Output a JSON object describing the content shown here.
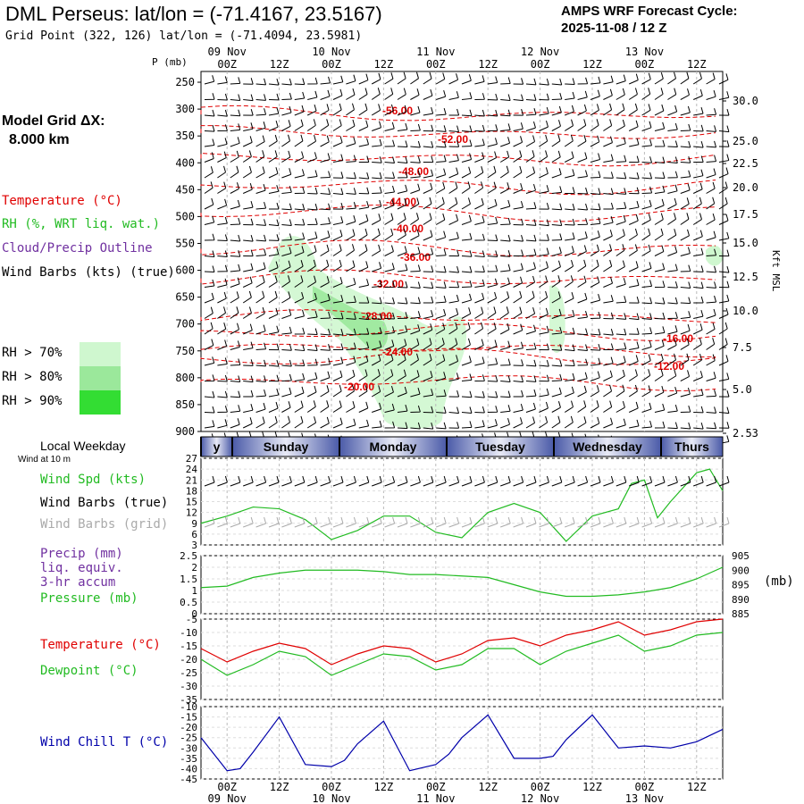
{
  "header": {
    "title": "DML Perseus:  lat/lon = (-71.4167, 23.5167)",
    "grid_point": "Grid Point (322, 126) lat/lon = (-71.4094, 23.5981)",
    "cycle_line1": "AMPS WRF Forecast Cycle:",
    "cycle_line2": "2025-11-08 / 12  Z",
    "model_grid_label": "Model Grid ΔX:",
    "model_grid_value": "8.000 km",
    "pressure_axis_label": "P (mb)",
    "kft_label": "Kft MSL"
  },
  "colors": {
    "temperature": "#e00000",
    "rh": "#22bb22",
    "cloud": "#7030a0",
    "wind": "#000000",
    "wind_grid": "#aaaaaa",
    "wind_chill": "#0000aa",
    "rh70": "#cff7cf",
    "rh80": "#9be89b",
    "rh90": "#33dd33",
    "weekday_band": "#4a5aa8"
  },
  "legend": {
    "temperature": "Temperature (°C)",
    "rh": "RH (%, WRT liq. wat.)",
    "cloud": "Cloud/Precip Outline",
    "wind": "Wind Barbs (kts) (true)",
    "rh70": "RH > 70%",
    "rh80": "RH > 80%",
    "rh90": "RH > 90%"
  },
  "panel_labels": {
    "local_weekday": "Local Weekday",
    "wind_at_10m": "Wind at 10 m",
    "wind_spd": "Wind Spd (kts)",
    "wind_barbs_true": "Wind Barbs (true)",
    "wind_barbs_grid": "Wind Barbs (grid)",
    "precip": "Precip (mm)",
    "liq_equiv": "liq. equiv.",
    "accum": "3-hr accum",
    "pressure": "Pressure (mb)",
    "pressure_unit": "(mb)",
    "temperature": "Temperature (°C)",
    "dewpoint": "Dewpoint (°C)",
    "wind_chill": "Wind Chill T (°C)"
  },
  "time_axis": {
    "top_dates": [
      "09 Nov",
      "10 Nov",
      "11 Nov",
      "12 Nov",
      "13 Nov"
    ],
    "hour_labels": [
      "00Z",
      "12Z",
      "00Z",
      "12Z",
      "00Z",
      "12Z",
      "00Z",
      "12Z",
      "00Z",
      "12Z"
    ],
    "bottom_dates": [
      "09 Nov",
      "10 Nov",
      "11 Nov",
      "12 Nov",
      "13 Nov"
    ],
    "weekdays": [
      "y",
      "Sunday",
      "Monday",
      "Tuesday",
      "Wednesday",
      "Thurs"
    ]
  },
  "chart_data": [
    {
      "type": "contour",
      "name": "cross-section",
      "x_hours": [
        0,
        120
      ],
      "ylabel": "P (mb)",
      "pressure_ticks": [
        250,
        300,
        350,
        400,
        450,
        500,
        550,
        600,
        650,
        700,
        750,
        800,
        850,
        900
      ],
      "height_ticks_kft": [
        "30.0",
        "25.0",
        "22.5",
        "20.0",
        "17.5",
        "15.0",
        "12.5",
        "10.0",
        "7.5",
        "5.0",
        "2.53"
      ],
      "temperature_contours": [
        {
          "label": "-56.00",
          "p": 310
        },
        {
          "label": "-52.00",
          "p": 345
        },
        {
          "label": "-48.00",
          "p": 392
        },
        {
          "label": "-44.00",
          "p": 443
        },
        {
          "label": "-40.00",
          "p": 493
        },
        {
          "label": "-36.00",
          "p": 560
        },
        {
          "label": "-32.00",
          "p": 615
        },
        {
          "label": "-28.00",
          "p": 687
        },
        {
          "label": "-24.00",
          "p": 747
        },
        {
          "label": "-20.00",
          "p": 808
        },
        {
          "label": "-16.00",
          "p": 715
        },
        {
          "label": "-12.00",
          "p": 762
        }
      ]
    },
    {
      "type": "line",
      "name": "wind-speed-10m",
      "ylabel": "Wind Spd (kts)",
      "ylim": [
        3,
        27
      ],
      "yticks": [
        3,
        6,
        9,
        12,
        15,
        18,
        21,
        24,
        27
      ],
      "x_hours": [
        0,
        6,
        12,
        18,
        24,
        30,
        36,
        42,
        48,
        54,
        60,
        66,
        72,
        78,
        84,
        90,
        96,
        99,
        102,
        105,
        108,
        114,
        117,
        120
      ],
      "values": [
        9,
        11,
        13.5,
        13,
        10,
        4.5,
        7,
        11,
        11,
        6.5,
        5,
        12,
        14.5,
        12,
        4,
        11,
        13,
        20,
        21,
        10.5,
        15,
        23,
        24,
        18
      ]
    },
    {
      "type": "line",
      "name": "pressure",
      "ylabel": "Pressure (mb)",
      "ylim": [
        885,
        905
      ],
      "yticks": [
        885,
        890,
        895,
        900,
        905
      ],
      "x_hours": [
        0,
        6,
        12,
        18,
        24,
        30,
        36,
        42,
        48,
        54,
        60,
        66,
        72,
        78,
        84,
        90,
        96,
        102,
        108,
        114,
        120
      ],
      "values": [
        894,
        894.5,
        897.5,
        899,
        900,
        900,
        900,
        899.5,
        898.5,
        898.5,
        898,
        897.5,
        895,
        892.5,
        891,
        891,
        891.5,
        892.5,
        894,
        897,
        901
      ]
    },
    {
      "type": "line",
      "name": "precip",
      "ylabel": "Precip (mm)",
      "ylim": [
        0.0,
        2.5
      ],
      "yticks": [
        0.0,
        0.5,
        1.0,
        1.5,
        2.0,
        2.5
      ],
      "values": []
    },
    {
      "type": "line",
      "name": "temperature-dewpoint",
      "ylim": [
        -35,
        -5
      ],
      "yticks": [
        -5,
        -10,
        -15,
        -20,
        -25,
        -30,
        -35
      ],
      "x_hours": [
        0,
        6,
        12,
        18,
        24,
        30,
        36,
        42,
        48,
        54,
        60,
        66,
        72,
        78,
        84,
        90,
        96,
        102,
        108,
        114,
        120
      ],
      "series": [
        {
          "name": "Temperature (°C)",
          "values": [
            -16,
            -21,
            -17,
            -14,
            -16,
            -22,
            -18,
            -15,
            -16,
            -21,
            -18,
            -13,
            -12,
            -15,
            -11,
            -9,
            -6,
            -11,
            -9,
            -6,
            -5
          ]
        },
        {
          "name": "Dewpoint (°C)",
          "values": [
            -20,
            -26,
            -22,
            -17,
            -19,
            -26,
            -22,
            -18,
            -19,
            -24,
            -22,
            -16,
            -16,
            -22,
            -17,
            -14,
            -11,
            -17,
            -15,
            -11,
            -10
          ]
        }
      ]
    },
    {
      "type": "line",
      "name": "wind-chill",
      "ylabel": "Wind Chill T (°C)",
      "ylim": [
        -45,
        -10
      ],
      "yticks": [
        -10,
        -15,
        -20,
        -25,
        -30,
        -35,
        -40,
        -45
      ],
      "x_hours": [
        0,
        6,
        9,
        12,
        18,
        24,
        30,
        33,
        36,
        42,
        48,
        54,
        57,
        60,
        66,
        72,
        78,
        81,
        84,
        90,
        96,
        102,
        108,
        114,
        120
      ],
      "values": [
        -25,
        -41,
        -40,
        -32,
        -15,
        -38,
        -39,
        -36,
        -28,
        -17,
        -41,
        -38,
        -33,
        -25,
        -14,
        -35,
        -35,
        -34,
        -26,
        -14,
        -30,
        -29,
        -30,
        -27,
        -21
      ]
    }
  ]
}
